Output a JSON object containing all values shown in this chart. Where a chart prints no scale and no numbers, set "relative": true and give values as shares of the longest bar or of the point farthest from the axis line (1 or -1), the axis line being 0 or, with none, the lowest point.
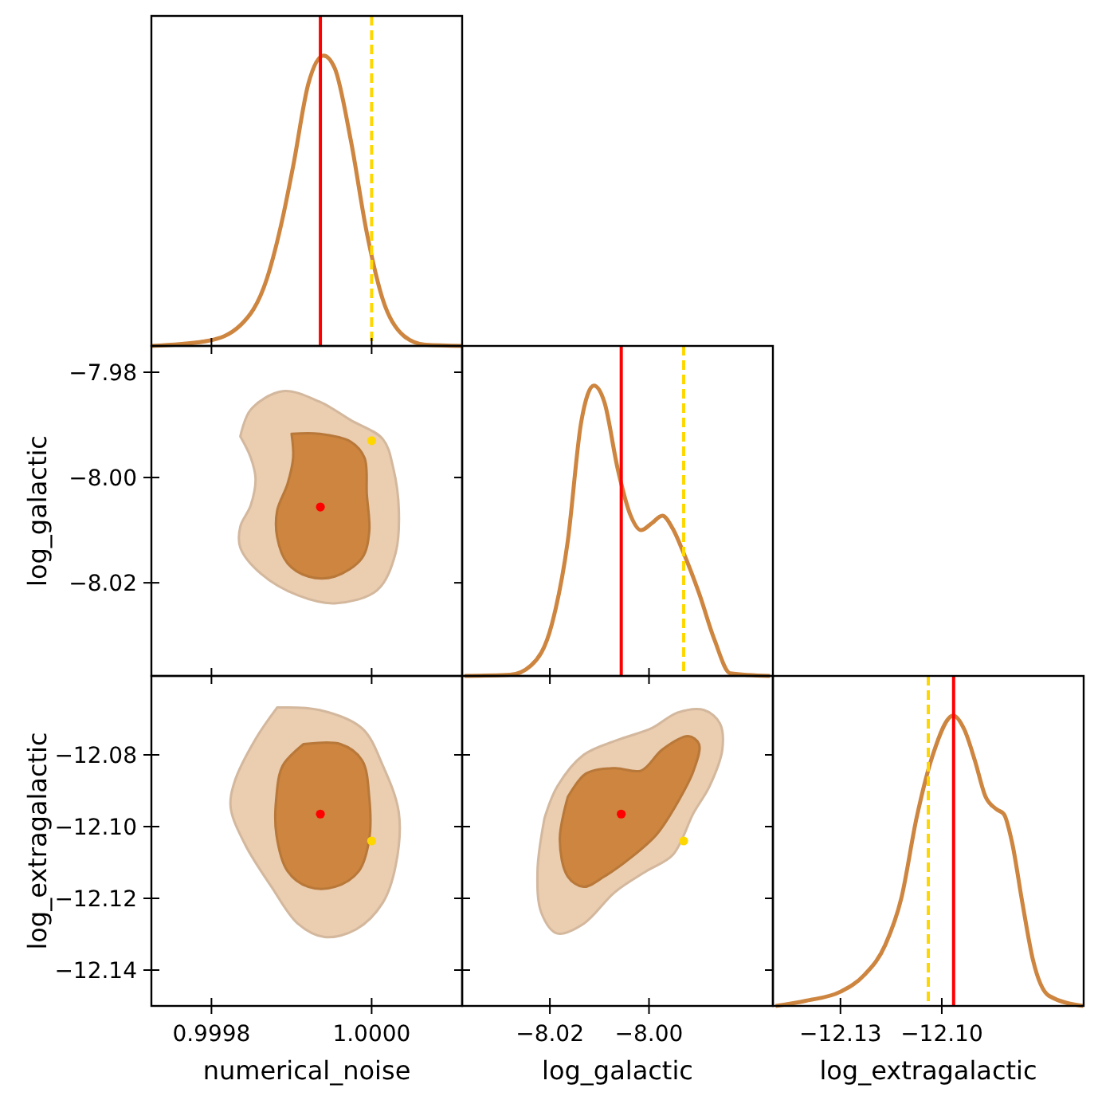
{
  "chart_data": [
    {
      "type": "line",
      "relative": true,
      "tick_labels": false,
      "xlim": [
        0.999725,
        1.000113
      ],
      "xticks": [
        0.9998,
        1.0
      ],
      "series": [
        {
          "color": "#cd853f",
          "x": [
            0.999725,
            0.999796,
            0.999836,
            0.999869,
            0.999889,
            0.999902,
            0.999921,
            0.99994,
            0.999954,
            0.999974,
            0.999994,
            1.000014,
            1.00004,
            1.000067,
            1.000113
          ],
          "values": [
            0,
            0.018,
            0.071,
            0.23,
            0.442,
            0.619,
            0.903,
            1,
            0.956,
            0.708,
            0.389,
            0.159,
            0.035,
            0.004,
            0
          ]
        }
      ],
      "ref_lines": [
        {
          "axis": "x",
          "value": 0.999936,
          "color": "#ff0000",
          "line_style": "solid"
        },
        {
          "axis": "x",
          "value": 1.0,
          "color": "#ffd700",
          "line_style": "dashed"
        }
      ]
    },
    {
      "type": "area",
      "tick_labels": "y",
      "ylabel": "log_galactic",
      "xlim": [
        0.999725,
        1.000113
      ],
      "xticks": [
        0.9998,
        1.0
      ],
      "ylim": [
        -8.0377,
        -7.975
      ],
      "yticks": [
        {
          "value": -7.98,
          "label": "−7.98"
        },
        {
          "value": -8.0,
          "label": "−8.00"
        },
        {
          "value": -8.02,
          "label": "−8.02"
        }
      ],
      "series": [
        {
          "color": "#ebcdb0",
          "x": [
            0.999836,
            0.999849,
            0.999889,
            0.999935,
            0.999974,
            1.000014,
            1.000027,
            1.000034,
            1.00003,
            1.000007,
            0.999954,
            0.999908,
            0.999862,
            0.999836,
            0.999836,
            0.999849,
            0.999855,
            0.999849,
            0.999836
          ],
          "values": [
            -7.9922,
            -7.9871,
            -7.9836,
            -7.9856,
            -7.9891,
            -7.9927,
            -7.9982,
            -8.0063,
            -8.0143,
            -8.0214,
            -8.0239,
            -8.0224,
            -8.0183,
            -8.0133,
            -8.0093,
            -8.0053,
            -8.0002,
            -7.9962,
            -7.9922
          ]
        },
        {
          "color": "#cd853f",
          "x": [
            0.9999,
            0.999935,
            0.999974,
            0.999991,
            0.999994,
            0.999997,
            0.999988,
            0.999954,
            0.999921,
            0.999895,
            0.999882,
            0.999882,
            0.999895,
            0.999902,
            0.9999
          ],
          "values": [
            -7.9917,
            -7.9917,
            -7.9932,
            -7.9962,
            -8.0032,
            -8.0103,
            -8.0153,
            -8.0188,
            -8.0188,
            -8.0163,
            -8.0113,
            -8.0063,
            -8.0012,
            -7.9962,
            -7.9917
          ]
        },
        {
          "type": "scatter",
          "color": "#ff0000",
          "x": [
            0.999936
          ],
          "values": [
            -8.0056
          ]
        },
        {
          "type": "scatter",
          "color": "#ffd700",
          "x": [
            1.0
          ],
          "values": [
            -7.993
          ]
        }
      ]
    },
    {
      "type": "line",
      "relative": true,
      "tick_labels": false,
      "xlim": [
        -8.0377,
        -7.975
      ],
      "xticks": [
        -8.02,
        -8.0
      ],
      "series": [
        {
          "color": "#cd853f",
          "x": [
            -8.0372,
            -8.028,
            -8.0238,
            -8.0196,
            -8.0164,
            -8.0137,
            -8.0111,
            -8.009,
            -8.0063,
            -8.0037,
            -8.0016,
            -7.9995,
            -7.9973,
            -7.9952,
            -7.9931,
            -7.9899,
            -7.9868,
            -7.9836,
            -7.9756
          ],
          "values": [
            0,
            0.004,
            0.036,
            0.178,
            0.463,
            0.872,
            1,
            0.943,
            0.712,
            0.552,
            0.502,
            0.525,
            0.552,
            0.507,
            0.427,
            0.285,
            0.125,
            0.009,
            0
          ]
        }
      ],
      "ref_lines": [
        {
          "axis": "x",
          "value": -8.0056,
          "color": "#ff0000",
          "line_style": "solid"
        },
        {
          "axis": "x",
          "value": -7.993,
          "color": "#ffd700",
          "line_style": "dashed"
        }
      ]
    },
    {
      "type": "area",
      "xlabel": "numerical_noise",
      "ylabel": "log_extragalactic",
      "xlim": [
        0.999725,
        1.000113
      ],
      "xticks": [
        0.9998,
        {
          "value": 1.0,
          "label": "1.0000"
        }
      ],
      "ylim": [
        -12.15,
        -12.058
      ],
      "yticks": [
        {
          "value": -12.08,
          "label": "−12.08"
        },
        {
          "value": -12.1,
          "label": "−12.10"
        },
        {
          "value": -12.12,
          "label": "−12.12"
        },
        {
          "value": -12.14,
          "label": "−12.14"
        }
      ],
      "series": [
        {
          "color": "#ebcdb0",
          "x": [
            0.999882,
            0.999935,
            0.999988,
            1.000014,
            1.000034,
            1.00003,
            1.000014,
            0.999981,
            0.999941,
            0.999908,
            0.999875,
            0.999842,
            0.999824,
            0.999829,
            0.999855,
            0.999882
          ],
          "values": [
            -12.0668,
            -12.0675,
            -12.0726,
            -12.083,
            -12.0962,
            -12.1109,
            -12.1212,
            -12.1286,
            -12.1308,
            -12.1271,
            -12.1168,
            -12.105,
            -12.0947,
            -12.0874,
            -12.0756,
            -12.0668
          ]
        },
        {
          "color": "#cd853f",
          "x": [
            0.999915,
            0.999961,
            0.999988,
            0.999997,
            0.999997,
            0.999984,
            0.999954,
            0.999921,
            0.999895,
            0.999881,
            0.999881,
            0.999889,
            0.999915
          ],
          "values": [
            -12.077,
            -12.077,
            -12.0815,
            -12.0918,
            -12.1035,
            -12.1124,
            -12.1168,
            -12.1168,
            -12.1124,
            -12.1021,
            -12.0918,
            -12.083,
            -12.077
          ]
        },
        {
          "type": "scatter",
          "color": "#ff0000",
          "x": [
            0.999936
          ],
          "values": [
            -12.0965
          ]
        },
        {
          "type": "scatter",
          "color": "#ffd700",
          "x": [
            1.0
          ],
          "values": [
            -12.104
          ]
        }
      ]
    },
    {
      "type": "area",
      "tick_labels": "x",
      "xlabel": "log_galactic",
      "xlim": [
        -8.0377,
        -7.975
      ],
      "xticks": [
        {
          "value": -8.02,
          "label": "−8.02"
        },
        {
          "value": -8.0,
          "label": "−8.00"
        }
      ],
      "ylim": [
        -12.15,
        -12.058
      ],
      "yticks": [
        -12.08,
        -12.1,
        -12.12,
        -12.14
      ],
      "series": [
        {
          "color": "#ebcdb0",
          "x": [
            -8.0211,
            -8.0185,
            -8.0132,
            -8.0058,
            -7.9995,
            -7.9942,
            -7.9889,
            -7.9857,
            -7.9852,
            -7.9878,
            -7.991,
            -7.9952,
            -8.0005,
            -8.0069,
            -8.0132,
            -8.0185,
            -8.0217,
            -8.0225,
            -8.0211
          ],
          "values": [
            -12.0977,
            -12.0888,
            -12.08,
            -12.0756,
            -12.0726,
            -12.0682,
            -12.0675,
            -12.0712,
            -12.0785,
            -12.0888,
            -12.0962,
            -12.1079,
            -12.1124,
            -12.1183,
            -12.1271,
            -12.1298,
            -12.1241,
            -12.1124,
            -12.0977
          ]
        },
        {
          "color": "#cd853f",
          "x": [
            -8.0164,
            -8.0127,
            -8.0069,
            -8.0016,
            -7.9973,
            -7.9921,
            -7.9899,
            -7.991,
            -7.9942,
            -7.9984,
            -8.0037,
            -8.009,
            -8.0132,
            -8.0164,
            -8.018,
            -8.0164
          ],
          "values": [
            -12.0918,
            -12.0852,
            -12.0837,
            -12.0844,
            -12.0785,
            -12.0748,
            -12.077,
            -12.0844,
            -12.0932,
            -12.1021,
            -12.1087,
            -12.1139,
            -12.1168,
            -12.1139,
            -12.1035,
            -12.0918
          ]
        },
        {
          "type": "scatter",
          "color": "#ff0000",
          "x": [
            -8.0056
          ],
          "values": [
            -12.0965
          ]
        },
        {
          "type": "scatter",
          "color": "#ffd700",
          "x": [
            -7.993
          ],
          "values": [
            -12.104
          ]
        }
      ]
    },
    {
      "type": "line",
      "relative": true,
      "tick_labels": "x",
      "xlabel": "log_extragalactic",
      "xlim": [
        -12.15,
        -12.058
      ],
      "xticks": [
        {
          "value": -12.13,
          "label": "−12.13"
        },
        {
          "value": -12.1,
          "label": "−12.10"
        }
      ],
      "series": [
        {
          "color": "#cd853f",
          "x": [
            -12.1492,
            -12.1402,
            -12.13,
            -12.123,
            -12.1167,
            -12.112,
            -12.1074,
            -12.1027,
            -12.0966,
            -12.0933,
            -12.0902,
            -12.0871,
            -12.0839,
            -12.0816,
            -12.0792,
            -12.0761,
            -12.073,
            -12.0683,
            -12.0581
          ],
          "values": [
            0,
            0.018,
            0.049,
            0.106,
            0.211,
            0.37,
            0.651,
            0.863,
            1,
            0.951,
            0.845,
            0.722,
            0.678,
            0.66,
            0.563,
            0.352,
            0.158,
            0.035,
            0
          ]
        }
      ],
      "ref_lines": [
        {
          "axis": "x",
          "value": -12.0965,
          "color": "#ff0000",
          "line_style": "solid"
        },
        {
          "axis": "x",
          "value": -12.104,
          "color": "#ffd700",
          "line_style": "dashed"
        }
      ]
    }
  ]
}
